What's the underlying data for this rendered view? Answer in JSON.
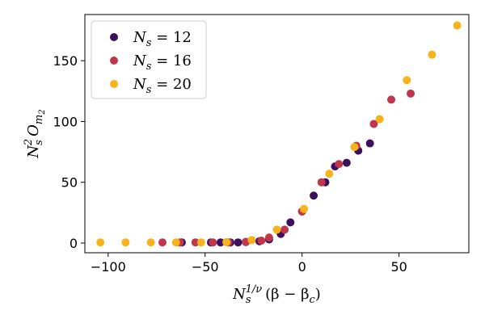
{
  "chart_data": {
    "type": "scatter",
    "xlabel": "N_s^{1/ν} (β − β_c)",
    "ylabel": "N_s^2 O_{m_2}",
    "xlim": [
      -112,
      86
    ],
    "ylim": [
      -8,
      188
    ],
    "xticks": [
      -100,
      -50,
      0,
      50
    ],
    "yticks": [
      0,
      50,
      100,
      150
    ],
    "grid": false,
    "legend_position": "top-left",
    "series": [
      {
        "name": "N_s = 12",
        "legend_label": {
          "var": "N",
          "sub": "s",
          "rest": " = 12"
        },
        "color": "#3e0f5e",
        "points": [
          [
            -62,
            0.5
          ],
          [
            -47,
            0.5
          ],
          [
            -42,
            0.5
          ],
          [
            -37,
            0.5
          ],
          [
            -33,
            0.5
          ],
          [
            -29,
            0.8
          ],
          [
            -22,
            1.5
          ],
          [
            -17,
            3
          ],
          [
            -11,
            7.5
          ],
          [
            -6,
            17
          ],
          [
            0,
            26
          ],
          [
            6,
            39
          ],
          [
            12,
            50
          ],
          [
            17,
            63
          ],
          [
            23,
            66
          ],
          [
            29,
            76
          ],
          [
            35,
            82
          ]
        ]
      },
      {
        "name": "N_s = 16",
        "legend_label": {
          "var": "N",
          "sub": "s",
          "rest": " = 16"
        },
        "color": "#c0374c",
        "points": [
          [
            -72,
            0.5
          ],
          [
            -63,
            0.5
          ],
          [
            -55,
            0.5
          ],
          [
            -46,
            0.5
          ],
          [
            -38,
            0.5
          ],
          [
            -29,
            1
          ],
          [
            -21,
            2
          ],
          [
            -17,
            4.5
          ],
          [
            -9,
            11
          ],
          [
            0,
            26
          ],
          [
            10,
            50
          ],
          [
            19,
            65
          ],
          [
            28,
            80
          ],
          [
            37,
            98
          ],
          [
            46,
            118
          ],
          [
            56,
            123
          ]
        ]
      },
      {
        "name": "N_s = 20",
        "legend_label": {
          "var": "N",
          "sub": "s",
          "rest": " = 20"
        },
        "color": "#f7b21c",
        "points": [
          [
            -104,
            0.5
          ],
          [
            -91,
            0.5
          ],
          [
            -78,
            0.5
          ],
          [
            -65,
            0.5
          ],
          [
            -52,
            0.5
          ],
          [
            -39,
            0.7
          ],
          [
            -26,
            2.5
          ],
          [
            -13,
            11
          ],
          [
            1,
            28
          ],
          [
            14,
            57
          ],
          [
            27,
            79
          ],
          [
            40,
            102
          ],
          [
            54,
            134
          ],
          [
            67,
            155
          ],
          [
            80,
            179
          ]
        ]
      }
    ]
  }
}
